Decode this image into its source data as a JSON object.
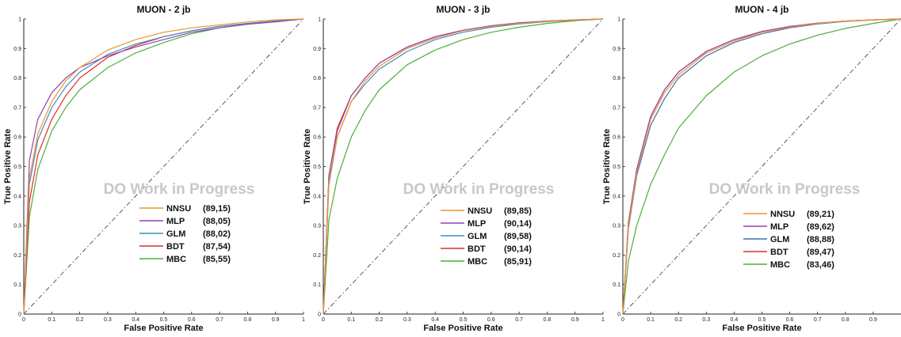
{
  "chart_data": [
    {
      "type": "line",
      "title": "MUON - 2 jb",
      "xlabel": "False Positive Rate",
      "ylabel": "True Positive Rate",
      "xlim": [
        0,
        1
      ],
      "ylim": [
        0,
        1
      ],
      "x_ticks": [
        "0",
        "0.1",
        "0.2",
        "0.3",
        "0.4",
        "0.5",
        "0.6",
        "0.7",
        "0.8",
        "0.9",
        "1"
      ],
      "y_ticks": [
        "0",
        "0.1",
        "0.2",
        "0.3",
        "0.4",
        "0.5",
        "0.6",
        "0.7",
        "0.8",
        "0.9",
        "1"
      ],
      "grid": false,
      "legend_position": "bottom-right",
      "watermark": "DO Work in Progress",
      "diagonal": true,
      "series": [
        {
          "name": "NNSU",
          "score": "(89,15)",
          "color": "#f0922b",
          "x": [
            0,
            0.02,
            0.05,
            0.1,
            0.15,
            0.2,
            0.3,
            0.4,
            0.5,
            0.6,
            0.7,
            0.8,
            0.9,
            1
          ],
          "y": [
            0,
            0.46,
            0.61,
            0.72,
            0.79,
            0.835,
            0.895,
            0.93,
            0.955,
            0.97,
            0.98,
            0.99,
            0.997,
            1
          ]
        },
        {
          "name": "MLP",
          "score": "(88,05)",
          "color": "#8e44ad",
          "x": [
            0,
            0.02,
            0.05,
            0.1,
            0.15,
            0.2,
            0.3,
            0.4,
            0.5,
            0.6,
            0.7,
            0.8,
            0.9,
            1
          ],
          "y": [
            0,
            0.52,
            0.66,
            0.75,
            0.8,
            0.835,
            0.875,
            0.905,
            0.93,
            0.955,
            0.97,
            0.982,
            0.99,
            1
          ]
        },
        {
          "name": "GLM",
          "score": "(88,02)",
          "color": "#3d8ec4",
          "x": [
            0,
            0.02,
            0.05,
            0.1,
            0.15,
            0.2,
            0.3,
            0.4,
            0.5,
            0.6,
            0.7,
            0.8,
            0.9,
            1
          ],
          "y": [
            0,
            0.44,
            0.59,
            0.7,
            0.77,
            0.82,
            0.88,
            0.915,
            0.94,
            0.96,
            0.975,
            0.985,
            0.993,
            1
          ]
        },
        {
          "name": "BDT",
          "score": "(87,54)",
          "color": "#d9302c",
          "x": [
            0,
            0.02,
            0.05,
            0.1,
            0.15,
            0.2,
            0.3,
            0.4,
            0.5,
            0.6,
            0.7,
            0.8,
            0.9,
            1
          ],
          "y": [
            0,
            0.38,
            0.54,
            0.66,
            0.74,
            0.8,
            0.87,
            0.91,
            0.94,
            0.96,
            0.975,
            0.985,
            0.993,
            1
          ]
        },
        {
          "name": "MBC",
          "score": "(85,55)",
          "color": "#4caf3c",
          "x": [
            0,
            0.02,
            0.05,
            0.1,
            0.15,
            0.2,
            0.3,
            0.4,
            0.5,
            0.6,
            0.7,
            0.8,
            0.9,
            1
          ],
          "y": [
            0,
            0.33,
            0.49,
            0.62,
            0.7,
            0.76,
            0.835,
            0.885,
            0.92,
            0.95,
            0.97,
            0.983,
            0.993,
            1
          ]
        }
      ]
    },
    {
      "type": "line",
      "title": "MUON - 3 jb",
      "xlabel": "False Positive Rate",
      "ylabel": "True Positive Rate",
      "xlim": [
        0,
        1
      ],
      "ylim": [
        0,
        1
      ],
      "x_ticks": [
        "0",
        "0.1",
        "0.2",
        "0.3",
        "0.4",
        "0.5",
        "0.6",
        "0.7",
        "0.8",
        "0.9",
        "1"
      ],
      "y_ticks": [
        "0",
        "0.1",
        "0.2",
        "0.3",
        "0.4",
        "0.5",
        "0.6",
        "0.7",
        "0.8",
        "0.9",
        "1"
      ],
      "grid": false,
      "legend_position": "bottom-right",
      "watermark": "DO Work in Progress",
      "diagonal": true,
      "series": [
        {
          "name": "NNSU",
          "score": "(89,85)",
          "color": "#f0922b",
          "x": [
            0,
            0.02,
            0.05,
            0.1,
            0.15,
            0.2,
            0.3,
            0.4,
            0.5,
            0.6,
            0.7,
            0.8,
            0.9,
            1
          ],
          "y": [
            0,
            0.45,
            0.6,
            0.72,
            0.79,
            0.84,
            0.9,
            0.935,
            0.96,
            0.975,
            0.985,
            0.992,
            0.997,
            1
          ]
        },
        {
          "name": "MLP",
          "score": "(90,14)",
          "color": "#8e44ad",
          "x": [
            0,
            0.02,
            0.05,
            0.1,
            0.15,
            0.2,
            0.3,
            0.4,
            0.5,
            0.6,
            0.7,
            0.8,
            0.9,
            1
          ],
          "y": [
            0,
            0.47,
            0.62,
            0.74,
            0.8,
            0.85,
            0.905,
            0.94,
            0.962,
            0.977,
            0.987,
            0.993,
            0.997,
            1
          ]
        },
        {
          "name": "GLM",
          "score": "(89,58)",
          "color": "#3d8ec4",
          "x": [
            0,
            0.02,
            0.05,
            0.1,
            0.15,
            0.2,
            0.3,
            0.4,
            0.5,
            0.6,
            0.7,
            0.8,
            0.9,
            1
          ],
          "y": [
            0,
            0.44,
            0.6,
            0.72,
            0.78,
            0.83,
            0.89,
            0.93,
            0.955,
            0.972,
            0.983,
            0.991,
            0.996,
            1
          ]
        },
        {
          "name": "BDT",
          "score": "(90,14)",
          "color": "#d9302c",
          "x": [
            0,
            0.02,
            0.05,
            0.1,
            0.15,
            0.2,
            0.3,
            0.4,
            0.5,
            0.6,
            0.7,
            0.8,
            0.9,
            1
          ],
          "y": [
            0,
            0.47,
            0.63,
            0.74,
            0.8,
            0.85,
            0.905,
            0.94,
            0.962,
            0.977,
            0.987,
            0.993,
            0.997,
            1
          ]
        },
        {
          "name": "MBC",
          "score": "(85,91)",
          "color": "#4caf3c",
          "x": [
            0,
            0.02,
            0.05,
            0.1,
            0.15,
            0.2,
            0.3,
            0.4,
            0.5,
            0.6,
            0.7,
            0.8,
            0.9,
            1
          ],
          "y": [
            0,
            0.32,
            0.46,
            0.6,
            0.69,
            0.76,
            0.845,
            0.895,
            0.93,
            0.955,
            0.972,
            0.985,
            0.994,
            1
          ]
        }
      ]
    },
    {
      "type": "line",
      "title": "MUON - 4 jb",
      "xlabel": "False Positive Rate",
      "ylabel": "True Positive Rate",
      "xlim": [
        0,
        1
      ],
      "ylim": [
        0,
        1
      ],
      "x_ticks": [
        "0",
        "0.1",
        "0.2",
        "0.3",
        "0.4",
        "0.5",
        "0.6",
        "0.7",
        "0.8",
        "0.9"
      ],
      "y_ticks": [
        "0",
        "0.1",
        "0.2",
        "0.3",
        "0.4",
        "0.5",
        "0.6",
        "0.7",
        "0.8",
        "0.9",
        "1"
      ],
      "grid": false,
      "legend_position": "bottom-right",
      "watermark": "DO Work in Progress",
      "diagonal": true,
      "series": [
        {
          "name": "NNSU",
          "score": "(89,21)",
          "color": "#f0922b",
          "x": [
            0,
            0.02,
            0.05,
            0.1,
            0.15,
            0.2,
            0.3,
            0.4,
            0.5,
            0.6,
            0.7,
            0.8,
            0.9,
            1
          ],
          "y": [
            0,
            0.3,
            0.48,
            0.66,
            0.75,
            0.81,
            0.885,
            0.925,
            0.955,
            0.972,
            0.985,
            0.993,
            0.997,
            1
          ]
        },
        {
          "name": "MLP",
          "score": "(89,62)",
          "color": "#8e44ad",
          "x": [
            0,
            0.02,
            0.05,
            0.1,
            0.15,
            0.2,
            0.3,
            0.4,
            0.5,
            0.6,
            0.7,
            0.8,
            0.9,
            1
          ],
          "y": [
            0,
            0.31,
            0.49,
            0.67,
            0.76,
            0.82,
            0.89,
            0.93,
            0.958,
            0.975,
            0.986,
            0.993,
            0.997,
            1
          ]
        },
        {
          "name": "GLM",
          "score": "(88,88)",
          "color": "#3d6fb4",
          "x": [
            0,
            0.02,
            0.05,
            0.1,
            0.15,
            0.2,
            0.3,
            0.4,
            0.5,
            0.6,
            0.7,
            0.8,
            0.9,
            1
          ],
          "y": [
            0,
            0.29,
            0.47,
            0.64,
            0.73,
            0.8,
            0.875,
            0.92,
            0.95,
            0.97,
            0.983,
            0.992,
            0.997,
            1
          ]
        },
        {
          "name": "BDT",
          "score": "(89,47)",
          "color": "#d9302c",
          "x": [
            0,
            0.02,
            0.05,
            0.1,
            0.15,
            0.2,
            0.3,
            0.4,
            0.5,
            0.6,
            0.7,
            0.8,
            0.9,
            1
          ],
          "y": [
            0,
            0.31,
            0.49,
            0.67,
            0.76,
            0.82,
            0.89,
            0.93,
            0.956,
            0.974,
            0.985,
            0.993,
            0.997,
            1
          ]
        },
        {
          "name": "MBC",
          "score": "(83,46)",
          "color": "#4caf3c",
          "x": [
            0,
            0.02,
            0.05,
            0.1,
            0.15,
            0.2,
            0.3,
            0.4,
            0.5,
            0.6,
            0.7,
            0.8,
            0.9,
            1
          ],
          "y": [
            0,
            0.18,
            0.3,
            0.44,
            0.54,
            0.63,
            0.74,
            0.82,
            0.875,
            0.915,
            0.945,
            0.968,
            0.985,
            1
          ]
        }
      ]
    }
  ]
}
